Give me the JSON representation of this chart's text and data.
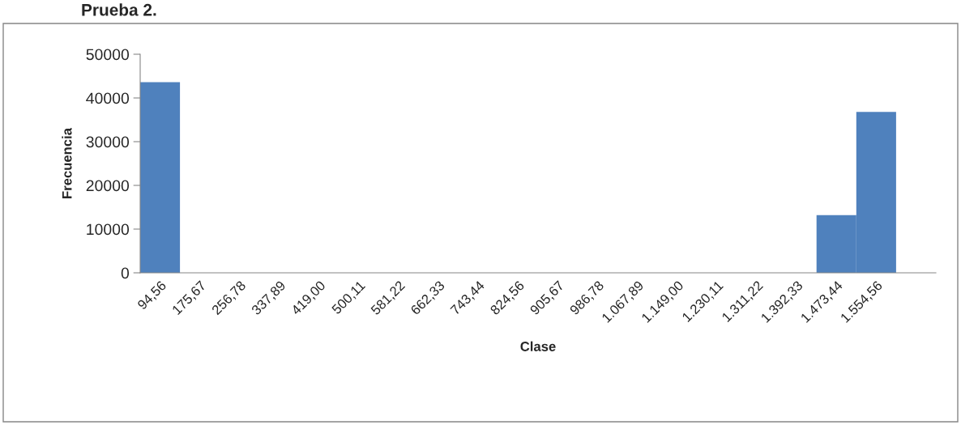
{
  "chart_data": {
    "type": "bar",
    "title": "Prueba 2.",
    "xlabel": "Clase",
    "ylabel": "Frecuencia",
    "categories": [
      "94,56",
      "175,67",
      "256,78",
      "337,89",
      "419,00",
      "500,11",
      "581,22",
      "662,33",
      "743,44",
      "824,56",
      "905,67",
      "986,78",
      "1.067,89",
      "1.149,00",
      "1.230,11",
      "1.311,22",
      "1.392,33",
      "1.473,44",
      "1.554,56",
      null
    ],
    "values": [
      43600,
      0,
      0,
      0,
      0,
      0,
      0,
      0,
      0,
      0,
      0,
      0,
      0,
      0,
      0,
      0,
      0,
      13200,
      36800,
      0
    ],
    "color": "#4f81bd",
    "ylim": [
      0,
      50000
    ],
    "yticks": [
      0,
      10000,
      20000,
      30000,
      40000,
      50000
    ],
    "grid": false,
    "legend": false
  }
}
